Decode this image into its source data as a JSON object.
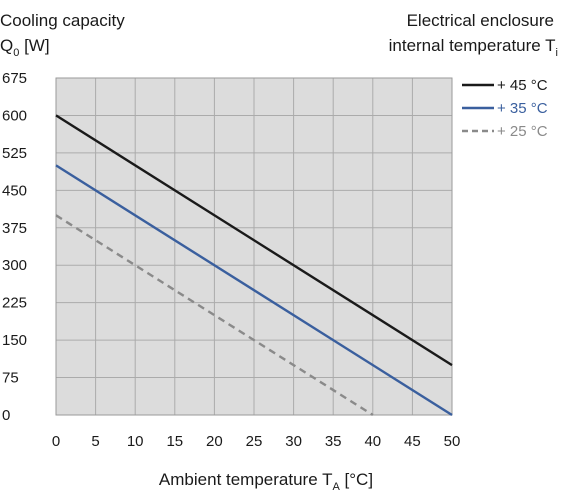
{
  "chart_data": {
    "type": "line",
    "title_left": {
      "line1": "Cooling capacity",
      "line2_main": "Q",
      "line2_sub": "0",
      "line2_unit": " [W]"
    },
    "title_right": {
      "line1": "Electrical enclosure",
      "line2_main": "internal temperature T",
      "line2_sub": "i"
    },
    "xlabel": {
      "main": "Ambient temperature T",
      "sub": "A",
      "unit": " [°C]"
    },
    "x_ticks": [
      "0",
      "5",
      "10",
      "15",
      "20",
      "25",
      "30",
      "35",
      "40",
      "45",
      "50"
    ],
    "y_ticks": [
      "0",
      "75",
      "150",
      "225",
      "300",
      "375",
      "450",
      "525",
      "600",
      "675"
    ],
    "xlim": [
      0,
      50
    ],
    "ylim": [
      0,
      675
    ],
    "grid": true,
    "legend_position": "right",
    "series": [
      {
        "name": "+ 45 °C",
        "color": "#1a1a1a",
        "dashed": false,
        "x": [
          0,
          50
        ],
        "y": [
          600,
          100
        ]
      },
      {
        "name": "+ 35 °C",
        "color": "#3a5f9e",
        "dashed": false,
        "x": [
          0,
          50
        ],
        "y": [
          500,
          0
        ]
      },
      {
        "name": "+ 25 °C",
        "color": "#8a8a8a",
        "dashed": true,
        "x": [
          0,
          40
        ],
        "y": [
          400,
          0
        ]
      }
    ]
  }
}
